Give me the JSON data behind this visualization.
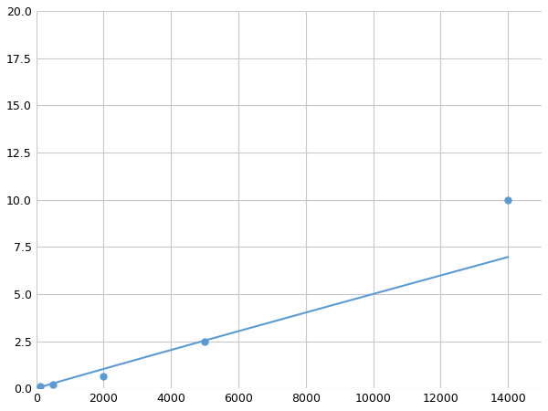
{
  "x": [
    125,
    500,
    2000,
    5000,
    14000
  ],
  "y": [
    0.1,
    0.2,
    0.65,
    2.5,
    10.0
  ],
  "line_color": "#5b9bd5",
  "marker_color": "#5b9bd5",
  "marker_size": 5,
  "line_width": 1.5,
  "xlim": [
    0,
    15000
  ],
  "ylim": [
    0,
    20
  ],
  "xticks": [
    0,
    2000,
    4000,
    6000,
    8000,
    10000,
    12000,
    14000
  ],
  "yticks": [
    0.0,
    2.5,
    5.0,
    7.5,
    10.0,
    12.5,
    15.0,
    17.5,
    20.0
  ],
  "grid_color": "#c8c8c8",
  "background_color": "#ffffff",
  "figsize": [
    6.0,
    4.5
  ],
  "dpi": 100
}
